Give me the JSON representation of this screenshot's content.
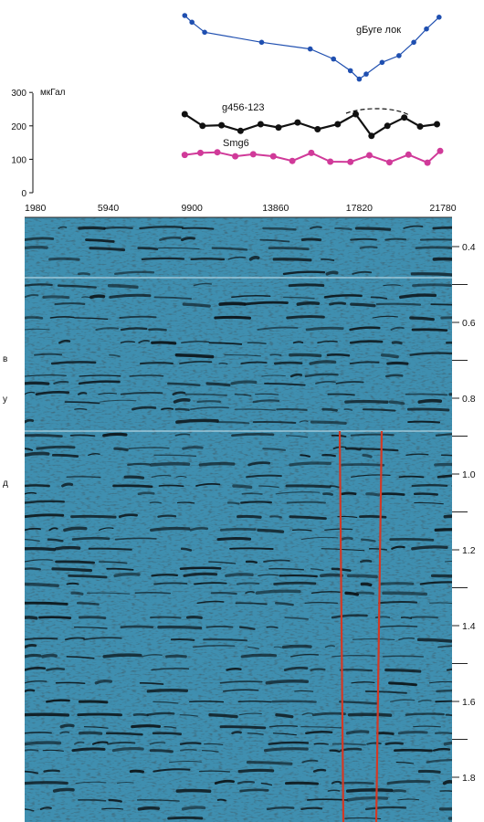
{
  "gravity_panel": {
    "unit": "мкГал",
    "y_ticks": [
      "0",
      "100",
      "200",
      "300"
    ]
  },
  "seismic_panel": {
    "x_ticks": [
      "1980",
      "5940",
      "9900",
      "13860",
      "17820",
      "21780"
    ],
    "time_ticks": [
      "0.4",
      "0.6",
      "0.8",
      "1.0",
      "1.2",
      "1.4",
      "1.6",
      "1.8"
    ],
    "side_labels": [
      "в",
      "у",
      "д"
    ],
    "fault_color": "#d23a26",
    "background_color": "#3f8fb0"
  },
  "chart_data": {
    "type": "line",
    "title": "",
    "ylabel": "мкГал",
    "ylim": [
      0,
      300
    ],
    "xlim": [
      1980,
      21780
    ],
    "series": [
      {
        "name": "gБуге лок",
        "color": "#1f4fb0",
        "x": [
          9560,
          9900,
          10500,
          13200,
          15500,
          16600,
          17400,
          17820,
          18150,
          18900,
          19700,
          20400,
          21000,
          21600
        ],
        "values": [
          530,
          510,
          480,
          450,
          430,
          400,
          365,
          340,
          355,
          390,
          410,
          450,
          490,
          525
        ]
      },
      {
        "name": "g456-123",
        "color": "#111111",
        "x": [
          9560,
          10400,
          11300,
          12200,
          13150,
          14000,
          14900,
          15850,
          16800,
          17650,
          18400,
          19150,
          19950,
          20700,
          21500
        ],
        "values": [
          235,
          200,
          202,
          185,
          205,
          195,
          210,
          190,
          205,
          235,
          170,
          200,
          225,
          198,
          205
        ]
      },
      {
        "name": "Smg6",
        "color": "#d03a99",
        "x": [
          9560,
          10300,
          11100,
          11950,
          12800,
          13750,
          14650,
          15550,
          16450,
          17400,
          18300,
          19250,
          20150,
          21050,
          21650
        ],
        "values": [
          113,
          119,
          121,
          109,
          115,
          109,
          95,
          119,
          93,
          92,
          112,
          91,
          114,
          90,
          125
        ]
      }
    ],
    "y_ticks": [
      0,
      100,
      200,
      300
    ],
    "x_ticks": [
      1980,
      5940,
      9900,
      13860,
      17820,
      21780
    ],
    "time_ticks": [
      0.4,
      0.6,
      0.8,
      1.0,
      1.2,
      1.4,
      1.6,
      1.8
    ],
    "annotation": "dashed arc over 17650–19950 on g456-123"
  }
}
